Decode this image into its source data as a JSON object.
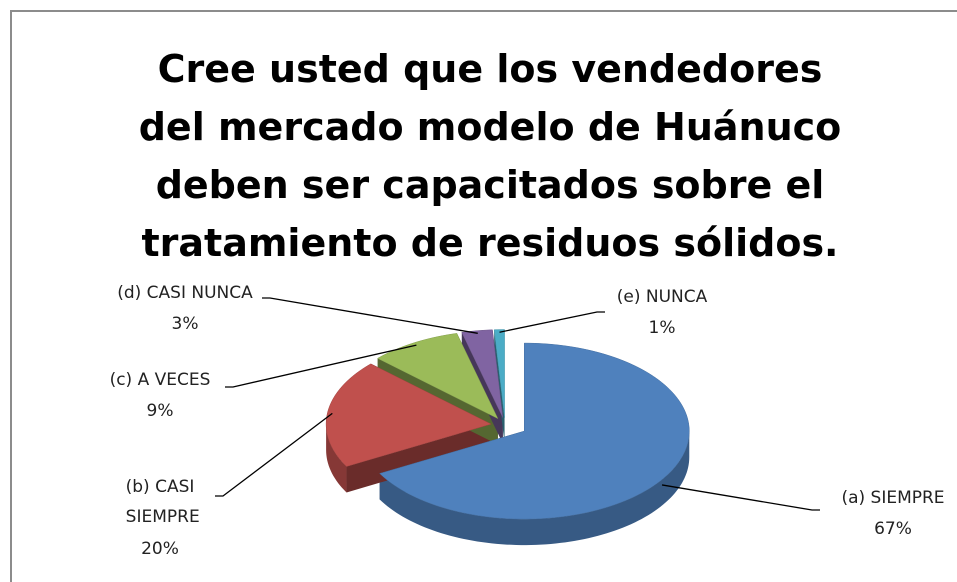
{
  "chart_data": {
    "type": "pie",
    "title": "Cree usted que los vendedores del mercado modelo de Huánuco deben ser capacitados sobre el tratamiento de residuos sólidos.",
    "categories": [
      "(a) SIEMPRE",
      "(b) CASI SIEMPRE",
      "(c) A VECES",
      "(d) CASI NUNCA",
      "(e) NUNCA"
    ],
    "values": [
      67,
      20,
      9,
      3,
      1
    ],
    "value_labels": [
      "67%",
      "20%",
      "9%",
      "3%",
      "1%"
    ],
    "colors": [
      "#4f81bd",
      "#c0504d",
      "#9bbb59",
      "#8064a2",
      "#4bacc6"
    ],
    "three_d": true
  }
}
